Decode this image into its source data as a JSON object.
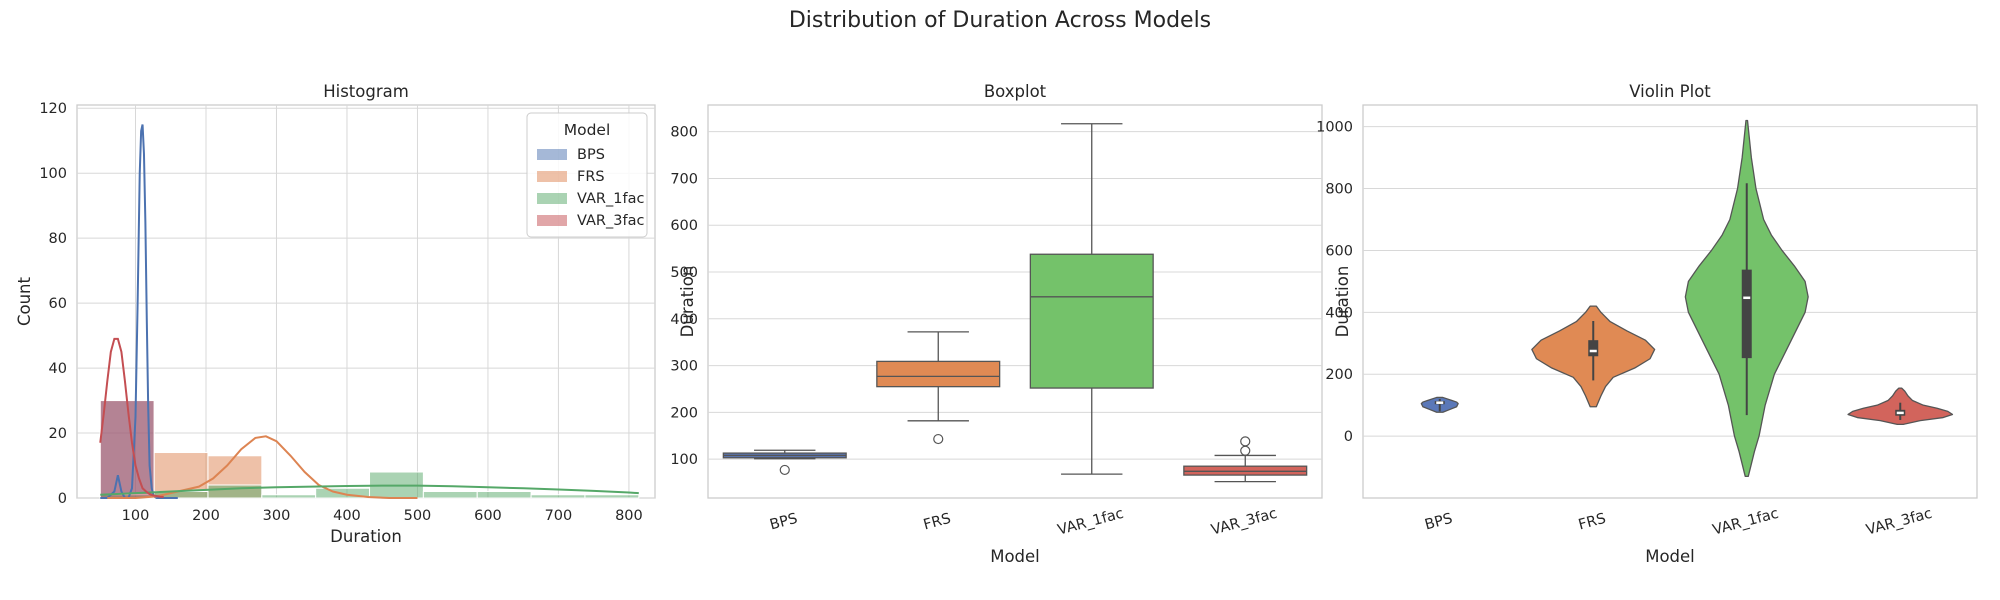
{
  "figure": {
    "title": "Distribution of Duration Across Models"
  },
  "colors": {
    "BPS": "#4c72b0",
    "FRS": "#dd8452",
    "VAR_1fac": "#55a868",
    "VAR_3fac": "#c44e52",
    "box_BPS": "#5b78b8",
    "box_FRS": "#e08a54",
    "box_VAR_1fac": "#74c26a",
    "box_VAR_3fac": "#d2645c",
    "grid": "#d8d8d8",
    "spine": "#cccccc",
    "box_line": "#555555"
  },
  "chart_data": [
    {
      "type": "histogram",
      "title": "Histogram",
      "xlabel": "Duration",
      "ylabel": "Count",
      "xlim": [
        17,
        837
      ],
      "ylim": [
        0,
        121
      ],
      "xticks": [
        100,
        200,
        300,
        400,
        500,
        600,
        700,
        800
      ],
      "yticks": [
        0,
        20,
        40,
        60,
        80,
        100,
        120
      ],
      "legend": {
        "title": "Model",
        "position": "top-right",
        "entries": [
          "BPS",
          "FRS",
          "VAR_1fac",
          "VAR_3fac"
        ]
      },
      "bin_width": 76.4,
      "bin_edges": [
        50.0,
        126.4,
        202.8,
        279.2,
        355.6,
        432.0,
        508.4,
        584.8,
        661.2,
        737.6,
        814.0
      ],
      "series": [
        {
          "name": "BPS",
          "counts": [
            30,
            0,
            0,
            0,
            0,
            0,
            0,
            0,
            0,
            0
          ],
          "kde_x": [
            50,
            60,
            70,
            75,
            80,
            85,
            90,
            95,
            100,
            103,
            106,
            108,
            110,
            112,
            114,
            116,
            118,
            120,
            123,
            126,
            130,
            140,
            150,
            160
          ],
          "kde_y": [
            0,
            0,
            2,
            7,
            2,
            0,
            0,
            3,
            25,
            60,
            100,
            113,
            115,
            106,
            85,
            55,
            28,
            10,
            3,
            0.5,
            0,
            0,
            0,
            0
          ]
        },
        {
          "name": "FRS",
          "counts": [
            0,
            14,
            13,
            0,
            0,
            0,
            0,
            0,
            0,
            0
          ],
          "kde_x": [
            60,
            100,
            130,
            160,
            190,
            210,
            230,
            250,
            270,
            285,
            300,
            320,
            340,
            360,
            380,
            400,
            430,
            460,
            500
          ],
          "kde_y": [
            0,
            0,
            0.5,
            2,
            3.5,
            6,
            10,
            15,
            18.5,
            19,
            17.5,
            13,
            8,
            4,
            2,
            1,
            0.3,
            0,
            0
          ]
        },
        {
          "name": "VAR_1fac",
          "counts": [
            1,
            2,
            4,
            1,
            3,
            8,
            2,
            2,
            1,
            1
          ],
          "kde_x": [
            50,
            100,
            150,
            200,
            250,
            300,
            350,
            400,
            450,
            500,
            550,
            600,
            650,
            700,
            750,
            800,
            814
          ],
          "kde_y": [
            1,
            1.5,
            2,
            2.5,
            3,
            3.3,
            3.5,
            3.7,
            3.8,
            3.8,
            3.6,
            3.3,
            3.0,
            2.6,
            2.2,
            1.7,
            1.5
          ]
        },
        {
          "name": "VAR_3fac",
          "counts": [
            30,
            0,
            0,
            0,
            0,
            0,
            0,
            0,
            0,
            0
          ],
          "kde_x": [
            50,
            55,
            60,
            65,
            70,
            75,
            80,
            85,
            90,
            95,
            100,
            105,
            110,
            115,
            120,
            125,
            130,
            135,
            140
          ],
          "kde_y": [
            17,
            26,
            36,
            45,
            49,
            49,
            45,
            36,
            26,
            17,
            10,
            6,
            3,
            2,
            1.2,
            0.8,
            0.6,
            0.4,
            0.3
          ]
        }
      ]
    },
    {
      "type": "box",
      "title": "Boxplot",
      "xlabel": "Model",
      "ylabel": "Duration",
      "categories": [
        "BPS",
        "FRS",
        "VAR_1fac",
        "VAR_3fac"
      ],
      "ylim": [
        17,
        857
      ],
      "yticks": [
        100,
        200,
        300,
        400,
        500,
        600,
        700,
        800
      ],
      "boxes": [
        {
          "name": "BPS",
          "whisker_low": 101,
          "q1": 103,
          "median": 108,
          "q3": 113,
          "whisker_high": 119,
          "outliers": [
            77
          ]
        },
        {
          "name": "FRS",
          "whisker_low": 182,
          "q1": 255,
          "median": 277,
          "q3": 309,
          "whisker_high": 372,
          "outliers": [
            143
          ]
        },
        {
          "name": "VAR_1fac",
          "whisker_low": 68,
          "q1": 252,
          "median": 447,
          "q3": 538,
          "whisker_high": 817,
          "outliers": []
        },
        {
          "name": "VAR_3fac",
          "whisker_low": 52,
          "q1": 66,
          "median": 74,
          "q3": 85,
          "whisker_high": 108,
          "outliers": [
            118,
            138
          ]
        }
      ]
    },
    {
      "type": "violin",
      "title": "Violin Plot",
      "xlabel": "Model",
      "ylabel": "Duration",
      "categories": [
        "BPS",
        "FRS",
        "VAR_1fac",
        "VAR_3fac"
      ],
      "ylim": [
        -200,
        1070
      ],
      "yticks": [
        0,
        200,
        400,
        600,
        800,
        1000
      ],
      "violins": [
        {
          "name": "BPS",
          "y": [
            77,
            85,
            95,
            105,
            110,
            115,
            125
          ],
          "half_width": [
            0.02,
            0.06,
            0.11,
            0.12,
            0.11,
            0.08,
            0.02
          ],
          "q1": 103,
          "median": 108,
          "q3": 113,
          "whisker_low": 80,
          "whisker_high": 120
        },
        {
          "name": "FRS",
          "y": [
            95,
            130,
            160,
            190,
            220,
            250,
            280,
            310,
            340,
            370,
            400,
            420
          ],
          "half_width": [
            0.02,
            0.05,
            0.08,
            0.13,
            0.27,
            0.37,
            0.4,
            0.34,
            0.22,
            0.11,
            0.05,
            0.02
          ],
          "q1": 258,
          "median": 275,
          "q3": 310,
          "whisker_low": 180,
          "whisker_high": 372
        },
        {
          "name": "VAR_1fac",
          "y": [
            -130,
            -50,
            0,
            100,
            200,
            300,
            400,
            450,
            500,
            550,
            600,
            650,
            700,
            800,
            900,
            1020
          ],
          "half_width": [
            0.01,
            0.05,
            0.08,
            0.12,
            0.18,
            0.28,
            0.38,
            0.4,
            0.38,
            0.31,
            0.23,
            0.16,
            0.11,
            0.06,
            0.03,
            0.005
          ],
          "q1": 252,
          "median": 447,
          "q3": 538,
          "whisker_low": 68,
          "whisker_high": 817
        },
        {
          "name": "VAR_3fac",
          "y": [
            38,
            50,
            60,
            70,
            80,
            90,
            100,
            115,
            130,
            145,
            155
          ],
          "half_width": [
            0.02,
            0.13,
            0.28,
            0.34,
            0.31,
            0.24,
            0.15,
            0.08,
            0.05,
            0.03,
            0.01
          ],
          "q1": 66,
          "median": 75,
          "q3": 85,
          "whisker_low": 52,
          "whisker_high": 108
        }
      ]
    }
  ]
}
